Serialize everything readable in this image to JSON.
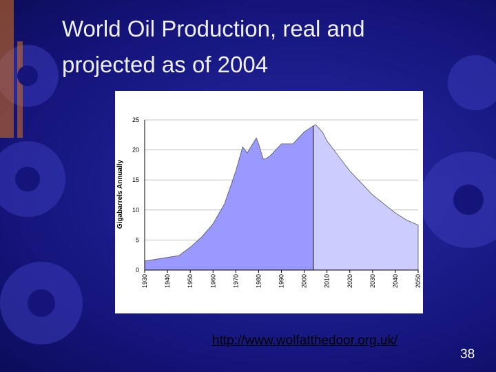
{
  "slide": {
    "title": "World Oil Production, real and projected as of 2004",
    "link": "http://www.wolfatthedoor.org.uk/",
    "page_number": 38
  },
  "chart_data": {
    "type": "area",
    "ylabel": "Gigabarrels Annually",
    "series": [
      {
        "color": "#9999ff",
        "x": [
          1930,
          1935,
          1940,
          1945,
          1950,
          1955,
          1960,
          1965,
          1970,
          1973,
          1975,
          1979,
          1980,
          1982,
          1983,
          1985,
          1990,
          1995,
          2000,
          2004
        ],
        "values": [
          1.5,
          1.8,
          2.1,
          2.4,
          3.8,
          5.5,
          7.7,
          11,
          16.5,
          20.5,
          19.5,
          22,
          21,
          18.5,
          18.5,
          19,
          21,
          21,
          23,
          24
        ]
      },
      {
        "color": "#ccccff",
        "x": [
          2004,
          2005,
          2008,
          2010,
          2015,
          2020,
          2025,
          2030,
          2035,
          2040,
          2045,
          2050
        ],
        "values": [
          24,
          24.2,
          23,
          21.5,
          19,
          16.5,
          14.5,
          12.5,
          11,
          9.5,
          8.3,
          7.5
        ]
      }
    ],
    "xlim": [
      1930,
      2050
    ],
    "xticks": [
      1930,
      1940,
      1950,
      1960,
      1970,
      1980,
      1990,
      2000,
      2010,
      2020,
      2030,
      2040,
      2050
    ],
    "ylim": [
      0,
      25
    ],
    "yticks": [
      0,
      5,
      10,
      15,
      20,
      25
    ],
    "grid": true
  }
}
